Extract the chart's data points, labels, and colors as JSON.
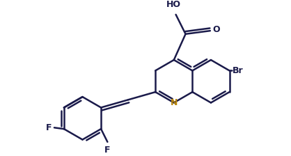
{
  "bg_color": "#ffffff",
  "line_color": "#1a1a4a",
  "line_width": 1.8,
  "dpi": 100,
  "figsize": [
    4.18,
    2.24
  ],
  "xlim": [
    0,
    418
  ],
  "ylim": [
    0,
    224
  ]
}
